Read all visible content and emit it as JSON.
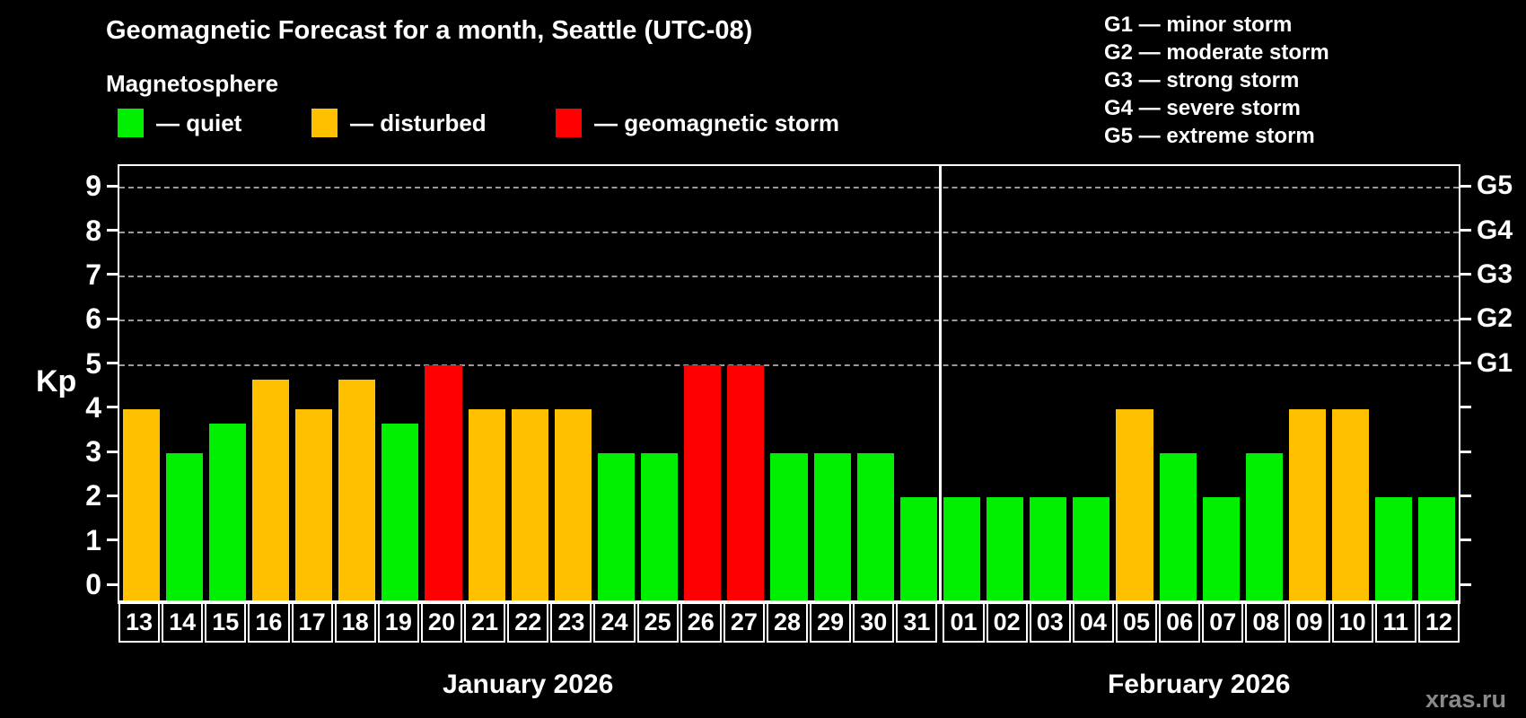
{
  "title": "Geomagnetic Forecast for a month, Seattle (UTC-08)",
  "subtitle": "Magnetosphere",
  "watermark": "xras.ru",
  "legend": {
    "items": [
      {
        "key": "quiet",
        "label": "— quiet",
        "color": "#00ef00"
      },
      {
        "key": "disturbed",
        "label": "— disturbed",
        "color": "#ffc000"
      },
      {
        "key": "storm",
        "label": "— geomagnetic storm",
        "color": "#ff0000"
      }
    ]
  },
  "g_legend": {
    "lines": [
      "G1 — minor storm",
      "G2 — moderate storm",
      "G3 — strong storm",
      "G4 — severe storm",
      "G5 — extreme storm"
    ]
  },
  "axes": {
    "y_label": "Kp",
    "y_ticks": [
      "0",
      "1",
      "2",
      "3",
      "4",
      "5",
      "6",
      "7",
      "8",
      "9"
    ],
    "right_axis_labels": [
      {
        "kp": 5,
        "label": "G1"
      },
      {
        "kp": 6,
        "label": "G2"
      },
      {
        "kp": 7,
        "label": "G3"
      },
      {
        "kp": 8,
        "label": "G4"
      },
      {
        "kp": 9,
        "label": "G5"
      }
    ],
    "gridlines_at_kp": [
      5,
      6,
      7,
      8,
      9
    ]
  },
  "chart_data": {
    "type": "bar",
    "title": "Geomagnetic Forecast for a month, Seattle (UTC-08)",
    "ylabel": "Kp",
    "ylim": [
      0,
      9.8
    ],
    "grid": "dashed horizontal lines at Kp 5-9 (G1-G5 levels)",
    "legend_position": "top-left",
    "months": [
      {
        "label": "January 2026",
        "days": [
          {
            "day": "13",
            "kp": 4.0,
            "status": "disturbed"
          },
          {
            "day": "14",
            "kp": 3.0,
            "status": "quiet"
          },
          {
            "day": "15",
            "kp": 3.67,
            "status": "quiet"
          },
          {
            "day": "16",
            "kp": 4.67,
            "status": "disturbed"
          },
          {
            "day": "17",
            "kp": 4.0,
            "status": "disturbed"
          },
          {
            "day": "18",
            "kp": 4.67,
            "status": "disturbed"
          },
          {
            "day": "19",
            "kp": 3.67,
            "status": "quiet"
          },
          {
            "day": "20",
            "kp": 5.0,
            "status": "storm"
          },
          {
            "day": "21",
            "kp": 4.0,
            "status": "disturbed"
          },
          {
            "day": "22",
            "kp": 4.0,
            "status": "disturbed"
          },
          {
            "day": "23",
            "kp": 4.0,
            "status": "disturbed"
          },
          {
            "day": "24",
            "kp": 3.0,
            "status": "quiet"
          },
          {
            "day": "25",
            "kp": 3.0,
            "status": "quiet"
          },
          {
            "day": "26",
            "kp": 5.0,
            "status": "storm"
          },
          {
            "day": "27",
            "kp": 5.0,
            "status": "storm"
          },
          {
            "day": "28",
            "kp": 3.0,
            "status": "quiet"
          },
          {
            "day": "29",
            "kp": 3.0,
            "status": "quiet"
          },
          {
            "day": "30",
            "kp": 3.0,
            "status": "quiet"
          },
          {
            "day": "31",
            "kp": 2.0,
            "status": "quiet"
          }
        ]
      },
      {
        "label": "February 2026",
        "days": [
          {
            "day": "01",
            "kp": 2.0,
            "status": "quiet"
          },
          {
            "day": "02",
            "kp": 2.0,
            "status": "quiet"
          },
          {
            "day": "03",
            "kp": 2.0,
            "status": "quiet"
          },
          {
            "day": "04",
            "kp": 2.0,
            "status": "quiet"
          },
          {
            "day": "05",
            "kp": 4.0,
            "status": "disturbed"
          },
          {
            "day": "06",
            "kp": 3.0,
            "status": "quiet"
          },
          {
            "day": "07",
            "kp": 2.0,
            "status": "quiet"
          },
          {
            "day": "08",
            "kp": 3.0,
            "status": "quiet"
          },
          {
            "day": "09",
            "kp": 4.0,
            "status": "disturbed"
          },
          {
            "day": "10",
            "kp": 4.0,
            "status": "disturbed"
          },
          {
            "day": "11",
            "kp": 2.0,
            "status": "quiet"
          },
          {
            "day": "12",
            "kp": 2.0,
            "status": "quiet"
          }
        ]
      }
    ]
  }
}
